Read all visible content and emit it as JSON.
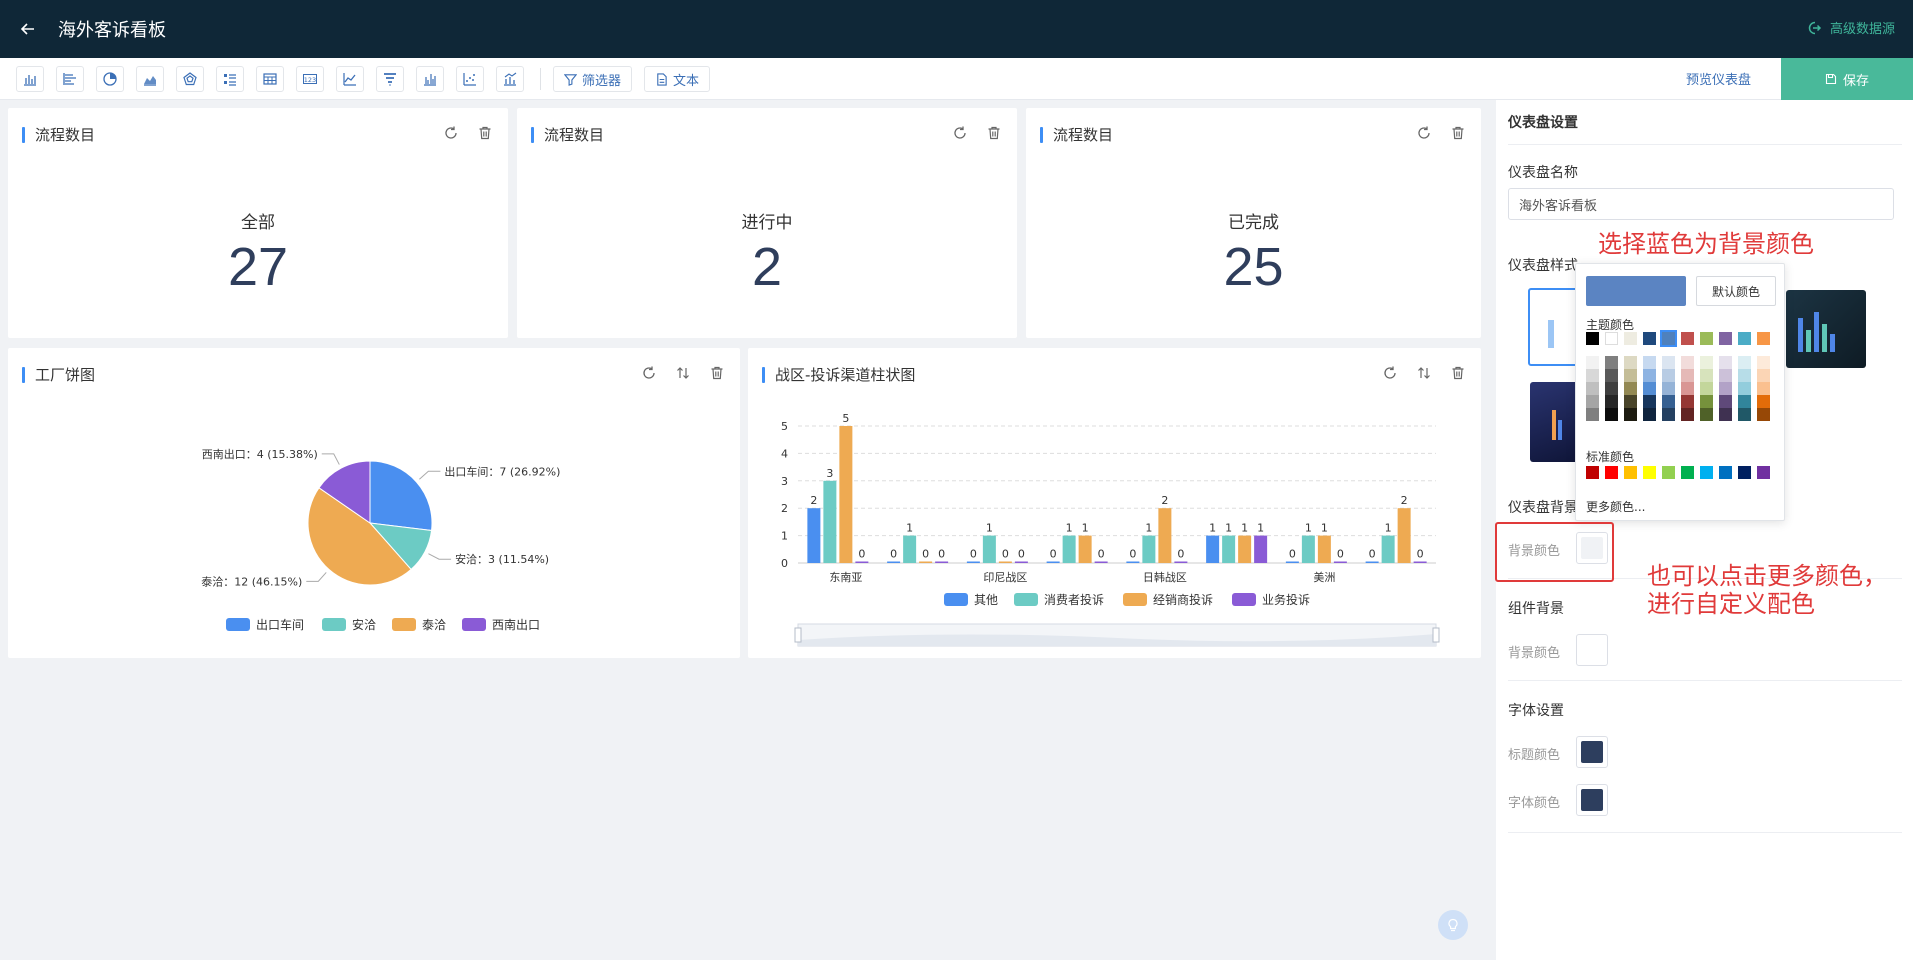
{
  "header": {
    "title": "海外客诉看板",
    "advanced_source": "高级数据源"
  },
  "toolbar": {
    "tool_icons": [
      "bar-chart-icon",
      "horizontal-bar-icon",
      "pie-chart-icon",
      "area-chart-icon",
      "radar-chart-icon",
      "list-icon",
      "table-icon",
      "number-icon",
      "line-chart-icon",
      "funnel-icon",
      "column-chart-icon",
      "scatter-icon",
      "combo-chart-icon"
    ],
    "filter_label": "筛选器",
    "text_label": "文本",
    "preview_label": "预览仪表盘",
    "save_label": "保存"
  },
  "cards": [
    {
      "title": "流程数目",
      "label": "全部",
      "value": "27"
    },
    {
      "title": "流程数目",
      "label": "进行中",
      "value": "2"
    },
    {
      "title": "流程数目",
      "label": "已完成",
      "value": "25"
    }
  ],
  "pie_card": {
    "title": "工厂饼图",
    "chart_data": {
      "type": "pie",
      "slices": [
        {
          "name": "出口车间",
          "value": 7,
          "label": "出口车间：7 (26.92%)",
          "color": "#4a8ff0"
        },
        {
          "name": "安洽",
          "value": 3,
          "label": "安洽：3 (11.54%)",
          "color": "#6ccbc4"
        },
        {
          "name": "泰洽",
          "value": 12,
          "label": "泰洽：12 (46.15%)",
          "color": "#eeaa52"
        },
        {
          "name": "西南出口",
          "value": 4,
          "label": "西南出口：4 (15.38%)",
          "color": "#8a5bd6"
        }
      ],
      "legend": [
        "出口车间",
        "安洽",
        "泰洽",
        "西南出口"
      ],
      "legend_position": "bottom"
    }
  },
  "bar_card": {
    "title": "战区-投诉渠道柱状图",
    "chart_data": {
      "type": "bar",
      "categories": [
        "东南亚",
        "",
        "印尼战区",
        "",
        "日韩战区",
        "",
        "美洲",
        ""
      ],
      "series": [
        {
          "name": "其他",
          "color": "#4a8ff0",
          "values": [
            2,
            0,
            0,
            0,
            0,
            1,
            0,
            0
          ]
        },
        {
          "name": "消费者投诉",
          "color": "#6ccbc4",
          "values": [
            3,
            1,
            1,
            1,
            1,
            1,
            1,
            1
          ]
        },
        {
          "name": "经销商投诉",
          "color": "#eeaa52",
          "values": [
            5,
            0,
            0,
            1,
            2,
            1,
            1,
            2
          ]
        },
        {
          "name": "业务投诉",
          "color": "#8a5bd6",
          "values": [
            0,
            0,
            0,
            0,
            0,
            1,
            0,
            0
          ]
        }
      ],
      "ylim": [
        0,
        5
      ],
      "yticks": [
        0,
        1,
        2,
        3,
        4,
        5
      ],
      "grid": true,
      "legend_position": "bottom"
    }
  },
  "panel": {
    "title": "仪表盘设置",
    "name_label": "仪表盘名称",
    "name_value": "海外客诉看板",
    "style_label": "仪表盘样式",
    "bg_section": "仪表盘背景",
    "bg_color_label": "背景颜色",
    "comp_section": "组件背景",
    "comp_color_label": "背景颜色",
    "font_section": "字体设置",
    "title_color_label": "标题颜色",
    "font_color_label": "字体颜色",
    "colors": {
      "bg": "#f0f2f5",
      "comp": "#ffffff",
      "title": "#2d3e5e",
      "font": "#2d3e5e"
    }
  },
  "popover": {
    "default_label": "默认颜色",
    "theme_label": "主题颜色",
    "standard_label": "标准颜色",
    "more_label": "更多颜色...",
    "selected": "#5b84c2",
    "theme_colors": [
      "#000000",
      "#ffffff",
      "#eeece1",
      "#1f497d",
      "#4f81bd",
      "#c0504d",
      "#9bbb59",
      "#8064a2",
      "#4bacc6",
      "#f79646"
    ],
    "shades": [
      [
        "#f2f2f2",
        "#7f7f7f",
        "#ddd9c3",
        "#c6d9f0",
        "#dbe5f1",
        "#f2dcdb",
        "#ebf1dd",
        "#e5e0ec",
        "#dbeef3",
        "#fdeada"
      ],
      [
        "#d8d8d8",
        "#595959",
        "#c4bd97",
        "#8db3e2",
        "#b8cce4",
        "#e5b9b7",
        "#d7e3bc",
        "#ccc1d9",
        "#b7dde8",
        "#fbd5b5"
      ],
      [
        "#bfbfbf",
        "#3f3f3f",
        "#938953",
        "#548dd4",
        "#95b3d7",
        "#d99694",
        "#c3d69b",
        "#b2a2c7",
        "#92cddc",
        "#fac08f"
      ],
      [
        "#a5a5a5",
        "#262626",
        "#494429",
        "#17365d",
        "#366092",
        "#953734",
        "#76923c",
        "#5f497a",
        "#31859b",
        "#e36c09"
      ],
      [
        "#7f7f7f",
        "#0c0c0c",
        "#1d1b10",
        "#0f243e",
        "#244061",
        "#632423",
        "#4f6128",
        "#3f3151",
        "#205867",
        "#974806"
      ]
    ],
    "standard_colors": [
      "#c00000",
      "#ff0000",
      "#ffc000",
      "#ffff00",
      "#92d050",
      "#00b050",
      "#00b0f0",
      "#0070c0",
      "#002060",
      "#7030a0"
    ]
  },
  "annotations": {
    "top": "选择蓝色为背景颜色",
    "bottom_1": "也可以点击更多颜色，",
    "bottom_2": "进行自定义配色"
  }
}
